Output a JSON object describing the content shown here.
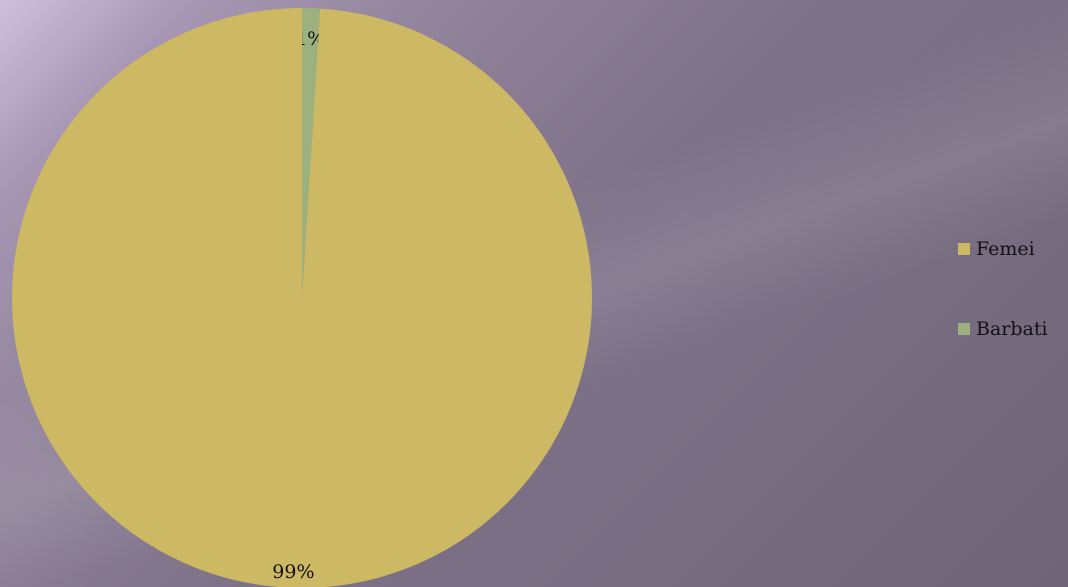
{
  "chart_data": {
    "type": "pie",
    "title": "",
    "categories": [
      "Femei",
      "Barbati"
    ],
    "values": [
      99,
      1
    ],
    "data_labels": [
      "99%",
      "1%"
    ],
    "colors": [
      "#cdb863",
      "#9cb17d"
    ],
    "legend_position": "right"
  }
}
